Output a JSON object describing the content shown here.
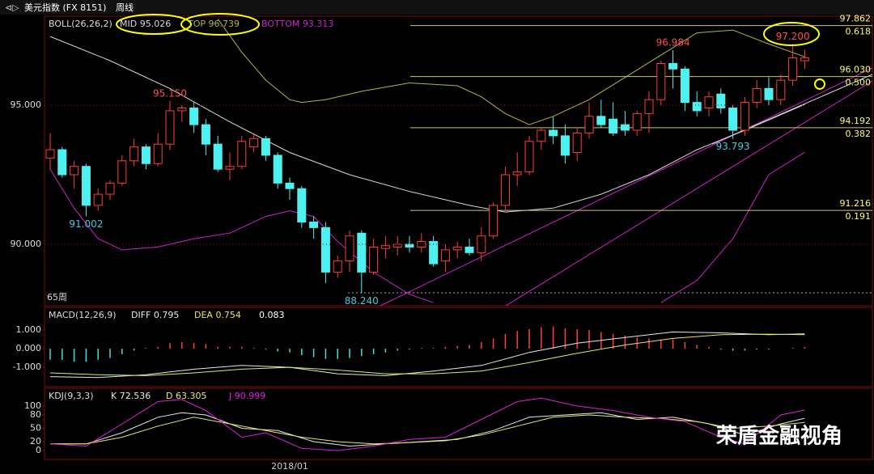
{
  "header": {
    "symbol": "美元指数 (FX 8151)",
    "period": "周线"
  },
  "watermark": "荣盾金融视角",
  "chart_data": [
    {
      "type": "candlestick",
      "title": "BOLL(26,26,2)",
      "period_label": "65周",
      "categories": [
        null,
        null,
        null,
        null,
        null,
        null,
        null,
        null,
        null,
        null,
        null,
        null,
        null,
        null,
        null,
        null,
        null,
        null,
        null,
        null,
        "2018/01",
        null,
        null,
        null,
        null,
        null,
        null,
        null,
        null,
        null,
        null,
        null,
        null,
        null,
        null,
        null,
        null,
        null,
        null,
        null,
        null,
        null,
        null,
        null,
        null,
        null,
        null,
        null,
        null,
        null,
        null,
        null,
        null,
        null,
        null,
        null,
        null,
        null,
        null,
        null,
        null,
        null,
        null,
        null
      ],
      "open": [
        93.1,
        93.4,
        92.5,
        92.8,
        91.4,
        91.8,
        92.2,
        93.0,
        93.5,
        92.9,
        93.6,
        94.8,
        94.9,
        94.3,
        93.6,
        92.7,
        92.8,
        93.5,
        93.8,
        93.2,
        92.2,
        92.0,
        90.8,
        90.6,
        89.0,
        89.4,
        90.4,
        89.0,
        89.85,
        89.9,
        90.0,
        89.9,
        90.1,
        89.4,
        89.8,
        89.9,
        89.7,
        90.3,
        91.4,
        92.5,
        92.6,
        93.7,
        94.1,
        93.9,
        93.3,
        94.0,
        94.6,
        94.5,
        94.3,
        94.1,
        94.7,
        95.2,
        96.5,
        96.3,
        95.1,
        94.9,
        95.4,
        94.9,
        94.1,
        95.1,
        95.6,
        95.2,
        95.9,
        96.6
      ],
      "high": [
        94.0,
        93.5,
        93.0,
        92.9,
        92.0,
        92.3,
        93.2,
        93.8,
        93.6,
        94.0,
        95.15,
        95.0,
        95.1,
        94.5,
        93.9,
        93.3,
        93.9,
        94.0,
        93.9,
        93.3,
        92.4,
        92.1,
        91.0,
        90.8,
        89.6,
        90.5,
        90.5,
        90.2,
        90.3,
        90.3,
        90.3,
        90.4,
        90.3,
        90.0,
        90.1,
        90.2,
        90.6,
        91.5,
        92.8,
        93.3,
        93.9,
        94.2,
        94.6,
        94.3,
        94.2,
        95.1,
        95.2,
        95.1,
        94.8,
        94.8,
        95.5,
        96.6,
        96.984,
        96.4,
        95.5,
        95.5,
        95.6,
        95.0,
        95.3,
        95.9,
        96.0,
        96.1,
        97.2,
        97.0
      ],
      "low": [
        92.7,
        92.4,
        92.0,
        91.002,
        91.2,
        91.6,
        92.1,
        92.8,
        92.7,
        92.8,
        93.4,
        94.4,
        94.0,
        93.2,
        92.6,
        92.3,
        92.7,
        93.3,
        93.0,
        92.0,
        91.6,
        90.6,
        90.2,
        88.6,
        88.8,
        89.0,
        88.24,
        88.9,
        89.5,
        89.6,
        89.7,
        89.7,
        89.2,
        89.0,
        89.5,
        89.6,
        89.4,
        90.2,
        91.2,
        92.1,
        92.5,
        93.4,
        93.6,
        92.9,
        93.0,
        93.8,
        94.2,
        93.9,
        93.9,
        93.9,
        94.0,
        95.0,
        95.6,
        94.8,
        94.6,
        94.6,
        94.7,
        93.793,
        93.9,
        94.9,
        95.0,
        95.0,
        95.7,
        96.3
      ],
      "close": [
        93.4,
        92.5,
        92.8,
        91.4,
        91.8,
        92.2,
        93.0,
        93.5,
        92.9,
        93.6,
        94.8,
        94.9,
        94.3,
        93.6,
        92.7,
        92.8,
        93.7,
        93.8,
        93.2,
        92.2,
        92.0,
        90.8,
        90.6,
        89.0,
        89.4,
        90.3,
        89.0,
        89.9,
        89.95,
        90.0,
        89.9,
        90.1,
        89.3,
        89.8,
        89.9,
        89.7,
        90.3,
        91.4,
        92.5,
        92.6,
        93.7,
        94.1,
        93.9,
        93.2,
        94.0,
        94.6,
        94.3,
        94.0,
        94.1,
        94.7,
        95.2,
        96.5,
        96.3,
        95.1,
        94.8,
        95.3,
        94.9,
        94.1,
        95.1,
        95.6,
        95.2,
        95.9,
        96.7,
        96.7
      ],
      "up_color": "#ff3c3c",
      "down_color": "#4ff0f0",
      "ylim": [
        87.79,
        98.2
      ],
      "yticks": [
        {
          "value": 90,
          "label": "90.000"
        },
        {
          "value": 95,
          "label": "95.000"
        }
      ],
      "grid": true,
      "series": [
        {
          "name": "MID 95.026",
          "color": "#d8d8d8",
          "x": [
            0,
            5,
            10,
            15,
            20,
            25,
            30,
            35,
            38,
            42,
            46,
            50,
            54,
            58,
            63
          ],
          "values": [
            97.47,
            96.6,
            95.6,
            94.4,
            93.3,
            92.5,
            91.9,
            91.4,
            91.16,
            91.3,
            91.8,
            92.5,
            93.4,
            94.1,
            95.03
          ]
        },
        {
          "name": "TOP 96.739",
          "color": "#b5b53c",
          "x": [
            14,
            16,
            18,
            20,
            21,
            23,
            26,
            30,
            34,
            36,
            38,
            40,
            42,
            45,
            48,
            51,
            54,
            57,
            60,
            63
          ],
          "values": [
            98.1,
            96.9,
            95.9,
            95.2,
            95.1,
            95.2,
            95.5,
            95.8,
            95.7,
            95.3,
            94.7,
            94.3,
            94.6,
            95.2,
            96.0,
            96.8,
            97.6,
            97.7,
            97.2,
            96.74
          ]
        },
        {
          "name": "BOTTOM 93.313",
          "color": "#d020d0",
          "x": [
            0,
            2,
            4,
            6,
            9,
            12,
            15,
            18,
            20,
            22,
            24,
            27,
            30,
            32,
            40,
            51,
            54,
            57,
            60,
            63
          ],
          "values": [
            92.7,
            91.3,
            90.2,
            89.8,
            89.9,
            90.2,
            90.4,
            91.0,
            91.2,
            91.0,
            90.1,
            89.0,
            88.2,
            87.9,
            null,
            87.9,
            88.7,
            90.2,
            92.5,
            93.31
          ]
        }
      ],
      "fib_levels": [
        {
          "value": 97.862,
          "label": "97.862",
          "ratio": 0.618
        },
        {
          "value": 96.03,
          "label": "96.030",
          "ratio": {
            "value": 0.5,
            "label": "0.500"
          }
        },
        {
          "value": 94.192,
          "label": "94.192",
          "ratio": 0.382
        },
        {
          "value": 91.216,
          "label": "91.216",
          "ratio": 0.191
        }
      ],
      "annotations": [
        {
          "x": 3,
          "value": 91.002,
          "label": "91.002"
        },
        {
          "x": 10,
          "value": 95.15,
          "label": "95.150"
        },
        {
          "x": 26,
          "value": 88.24,
          "label": "88.240"
        },
        {
          "x": 52,
          "value": 96.984,
          "label": "96.984"
        },
        {
          "x": 57,
          "value": 93.793,
          "label": "93.793"
        },
        {
          "x": 62,
          "value": 97.2,
          "label": "97.200"
        }
      ]
    },
    {
      "type": "bar",
      "title": "MACD(12,26,9)",
      "ylim": [
        -2.04,
        2.22
      ],
      "yticks": [
        {
          "value": -1,
          "label": "-1.000"
        },
        {
          "value": 0,
          "label": "0.000"
        },
        {
          "value": 1,
          "label": "1.000"
        }
      ],
      "histogram": {
        "name": "0.083",
        "up_color": "#ff4040",
        "down_color": "#40e0e0",
        "values": [
          -0.6,
          -0.6,
          -0.7,
          -0.7,
          -0.6,
          -0.5,
          -0.3,
          -0.1,
          0.05,
          0.1,
          0.3,
          0.35,
          0.3,
          0.25,
          0.1,
          0.1,
          0.1,
          0.05,
          -0.05,
          -0.15,
          -0.2,
          -0.35,
          -0.45,
          -0.55,
          -0.55,
          -0.5,
          -0.4,
          -0.3,
          -0.2,
          -0.1,
          -0.05,
          0.05,
          0.05,
          0.1,
          0.15,
          0.2,
          0.35,
          0.55,
          0.8,
          0.95,
          1.05,
          1.15,
          1.2,
          1.1,
          1.05,
          1.0,
          0.9,
          0.8,
          0.7,
          0.6,
          0.55,
          0.5,
          0.5,
          0.35,
          0.2,
          0.1,
          -0.05,
          -0.1,
          -0.1,
          -0.05,
          -0.05,
          0.0,
          0.05,
          0.083
        ]
      },
      "series": [
        {
          "name": "DIFF 0.795",
          "color": "#e8e8e8",
          "x": [
            0,
            4,
            8,
            12,
            16,
            20,
            24,
            28,
            32,
            36,
            40,
            44,
            48,
            52,
            56,
            60,
            63
          ],
          "values": [
            -1.5,
            -1.55,
            -1.4,
            -1.1,
            -0.9,
            -1.0,
            -1.35,
            -1.45,
            -1.2,
            -0.9,
            -0.2,
            0.3,
            0.6,
            0.9,
            0.85,
            0.75,
            0.795
          ]
        },
        {
          "name": "DEA 0.754",
          "color": "#e8e860",
          "x": [
            0,
            4,
            8,
            12,
            16,
            20,
            24,
            28,
            32,
            36,
            40,
            44,
            48,
            52,
            56,
            60,
            63
          ],
          "values": [
            -1.3,
            -1.4,
            -1.45,
            -1.3,
            -1.1,
            -1.0,
            -1.15,
            -1.35,
            -1.35,
            -1.2,
            -0.75,
            -0.25,
            0.2,
            0.55,
            0.75,
            0.78,
            0.754
          ]
        }
      ]
    },
    {
      "type": "line",
      "title": "KDJ(9,3,3)",
      "ylim": [
        -20,
        140
      ],
      "yticks": [
        0,
        20,
        50,
        80,
        100
      ],
      "series": [
        {
          "name": "K 72.536",
          "color": "#e8e8e8",
          "x": [
            0,
            3,
            6,
            9,
            11,
            13,
            16,
            19,
            22,
            25,
            28,
            31,
            34,
            37,
            40,
            43,
            46,
            49,
            52,
            55,
            58,
            61,
            63
          ],
          "values": [
            15,
            15,
            40,
            75,
            85,
            80,
            50,
            45,
            20,
            10,
            15,
            20,
            25,
            45,
            75,
            80,
            85,
            70,
            75,
            60,
            35,
            60,
            72.5
          ]
        },
        {
          "name": "D 63.305",
          "color": "#e8e860",
          "x": [
            0,
            3,
            6,
            9,
            12,
            15,
            18,
            21,
            24,
            27,
            30,
            33,
            36,
            39,
            42,
            45,
            48,
            51,
            54,
            57,
            60,
            63
          ],
          "values": [
            15,
            15,
            30,
            55,
            75,
            60,
            45,
            30,
            20,
            15,
            18,
            22,
            35,
            55,
            75,
            80,
            75,
            72,
            65,
            50,
            55,
            63.3
          ]
        },
        {
          "name": "J 90.999",
          "color": "#e020e0",
          "x": [
            0,
            3,
            6,
            9,
            11,
            13,
            16,
            18,
            21,
            24,
            27,
            30,
            33,
            36,
            39,
            41,
            44,
            47,
            50,
            53,
            56,
            58,
            61,
            63
          ],
          "values": [
            15,
            10,
            60,
            110,
            115,
            90,
            30,
            40,
            5,
            0,
            10,
            25,
            30,
            70,
            110,
            118,
            100,
            90,
            75,
            65,
            30,
            15,
            80,
            91
          ]
        }
      ]
    }
  ]
}
